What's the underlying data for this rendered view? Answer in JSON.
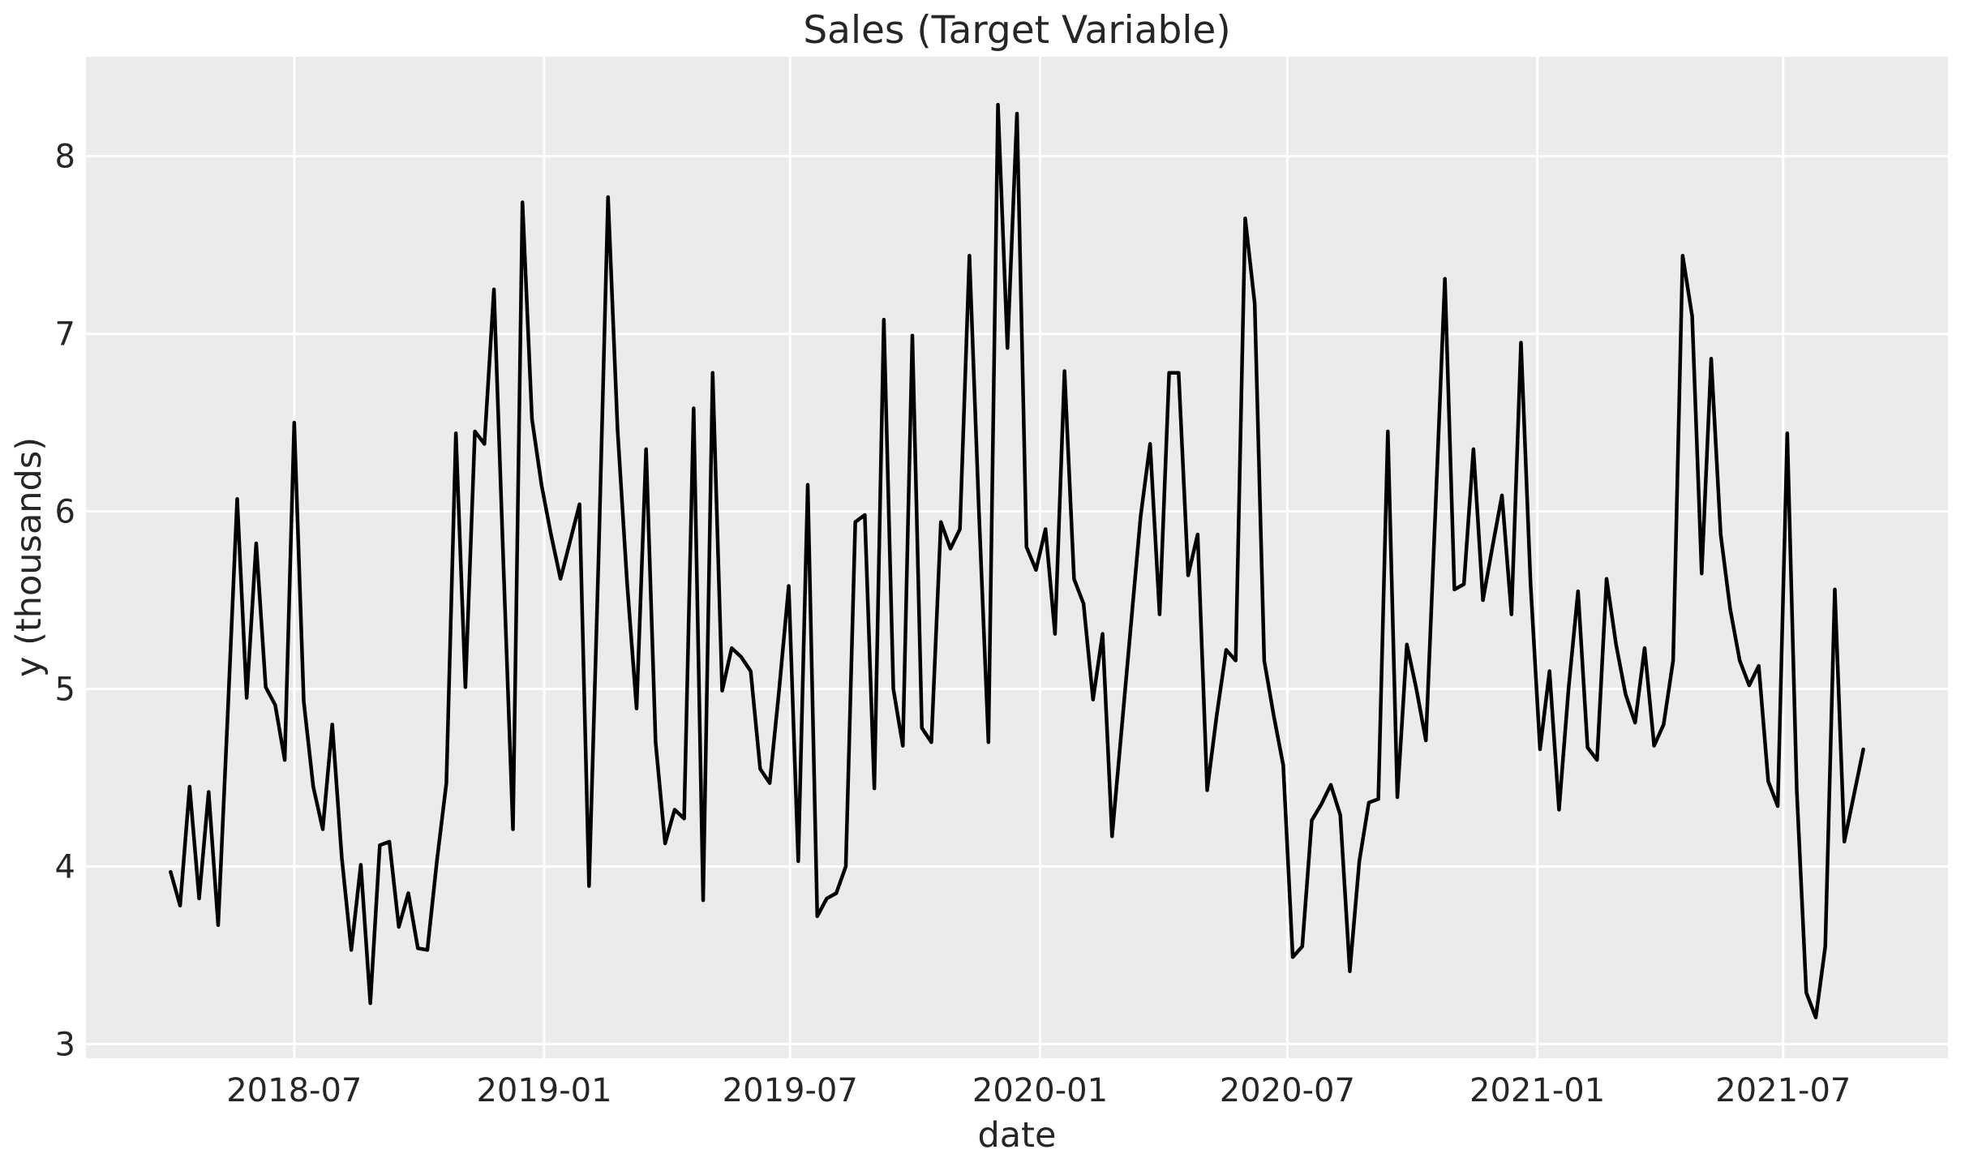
{
  "figure": {
    "background_color": "#ffffff"
  },
  "chart_data": {
    "type": "line",
    "title": "Sales (Target Variable)",
    "xlabel": "date",
    "ylabel": "y (thousands)",
    "legend": "none",
    "grid": true,
    "plot_bg": "#ebebeb",
    "grid_color": "#ffffff",
    "line_color": "#000000",
    "text_color": "#262626",
    "line_width": 4.5,
    "start_date": "2018-04-01",
    "interval_days": 7,
    "x_pad_frac": 0.05,
    "ylim": [
      2.92,
      8.56
    ],
    "y_ticks": [
      3,
      4,
      5,
      6,
      7,
      8
    ],
    "x_ticks": [
      {
        "date": "2018-07-01",
        "label": "2018-07"
      },
      {
        "date": "2019-01-01",
        "label": "2019-01"
      },
      {
        "date": "2019-07-01",
        "label": "2019-07"
      },
      {
        "date": "2020-01-01",
        "label": "2020-01"
      },
      {
        "date": "2020-07-01",
        "label": "2020-07"
      },
      {
        "date": "2021-01-01",
        "label": "2021-01"
      },
      {
        "date": "2021-07-01",
        "label": "2021-07"
      }
    ],
    "values": [
      3.97,
      3.78,
      4.45,
      3.82,
      4.42,
      3.67,
      4.85,
      6.07,
      4.95,
      5.82,
      5.01,
      4.91,
      4.6,
      6.5,
      4.93,
      4.45,
      4.21,
      4.8,
      4.05,
      3.53,
      4.01,
      3.23,
      4.12,
      4.14,
      3.66,
      3.85,
      3.54,
      3.53,
      4.03,
      4.47,
      6.44,
      5.01,
      6.45,
      6.38,
      7.25,
      5.7,
      4.21,
      7.74,
      6.52,
      6.15,
      5.87,
      5.62,
      5.83,
      6.04,
      3.89,
      5.73,
      7.77,
      6.46,
      5.6,
      4.89,
      6.35,
      4.7,
      4.13,
      4.32,
      4.27,
      6.58,
      3.81,
      6.78,
      4.99,
      5.23,
      5.18,
      5.1,
      4.55,
      4.47,
      5.0,
      5.58,
      4.03,
      6.15,
      3.72,
      3.82,
      3.85,
      4.0,
      5.94,
      5.98,
      4.44,
      7.08,
      5.0,
      4.68,
      6.99,
      4.78,
      4.7,
      5.94,
      5.79,
      5.9,
      7.44,
      6.0,
      4.7,
      8.29,
      6.92,
      8.24,
      5.8,
      5.67,
      5.9,
      5.31,
      6.79,
      5.62,
      5.48,
      4.94,
      5.31,
      4.17,
      4.77,
      5.37,
      5.97,
      6.38,
      5.42,
      6.78,
      6.78,
      5.64,
      5.87,
      4.43,
      4.85,
      5.22,
      5.16,
      7.65,
      7.17,
      5.16,
      4.85,
      4.57,
      3.49,
      3.55,
      4.26,
      4.35,
      4.46,
      4.29,
      3.41,
      4.03,
      4.36,
      4.38,
      6.45,
      4.39,
      5.25,
      5.0,
      4.71,
      6.0,
      7.31,
      5.56,
      5.59,
      6.35,
      5.5,
      5.8,
      6.09,
      5.42,
      6.95,
      5.6,
      4.66,
      5.1,
      4.32,
      5.0,
      5.55,
      4.67,
      4.6,
      5.62,
      5.25,
      4.97,
      4.81,
      5.23,
      4.68,
      4.8,
      5.16,
      7.44,
      7.1,
      5.65,
      6.86,
      5.87,
      5.45,
      5.16,
      5.02,
      5.13,
      4.48,
      4.34,
      6.44,
      4.43,
      3.29,
      3.15,
      3.55,
      5.56,
      4.14,
      4.4,
      4.66
    ]
  }
}
